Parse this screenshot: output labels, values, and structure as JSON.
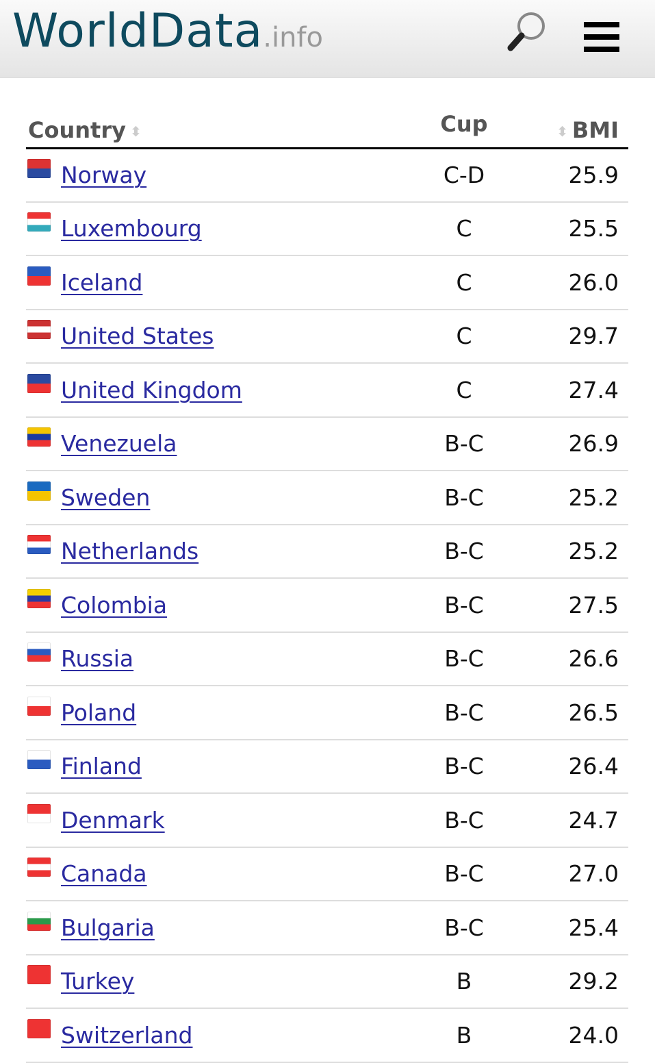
{
  "header": {
    "logo_main": "WorldData",
    "logo_tld": ".info",
    "search_icon": "magnifier-icon",
    "menu_icon": "hamburger-icon"
  },
  "table": {
    "columns": {
      "country": "Country",
      "cup": "Cup",
      "bmi": "BMI"
    },
    "rows": [
      {
        "country": "Norway",
        "cup": "C-D",
        "bmi": "25.9",
        "flag": [
          "#d33",
          "#2a4aa0"
        ]
      },
      {
        "country": "Luxembourg",
        "cup": "C",
        "bmi": "25.5",
        "flag": [
          "#e33",
          "#fff",
          "#3ab"
        ]
      },
      {
        "country": "Iceland",
        "cup": "C",
        "bmi": "26.0",
        "flag": [
          "#2a5bc0",
          "#e33"
        ]
      },
      {
        "country": "United States",
        "cup": "C",
        "bmi": "29.7",
        "flag": [
          "#c33",
          "#fff",
          "#c33"
        ]
      },
      {
        "country": "United Kingdom",
        "cup": "C",
        "bmi": "27.4",
        "flag": [
          "#2a4aa0",
          "#e33"
        ]
      },
      {
        "country": "Venezuela",
        "cup": "B-C",
        "bmi": "26.9",
        "flag": [
          "#f5c400",
          "#1a3aa0",
          "#e33"
        ]
      },
      {
        "country": "Sweden",
        "cup": "B-C",
        "bmi": "25.2",
        "flag": [
          "#1a6ac0",
          "#f5c400"
        ]
      },
      {
        "country": "Netherlands",
        "cup": "B-C",
        "bmi": "25.2",
        "flag": [
          "#e33",
          "#fff",
          "#2a5bc0"
        ]
      },
      {
        "country": "Colombia",
        "cup": "B-C",
        "bmi": "27.5",
        "flag": [
          "#f5d000",
          "#2a3aa0",
          "#e33"
        ]
      },
      {
        "country": "Russia",
        "cup": "B-C",
        "bmi": "26.6",
        "flag": [
          "#fff",
          "#2a5bc0",
          "#e33"
        ]
      },
      {
        "country": "Poland",
        "cup": "B-C",
        "bmi": "26.5",
        "flag": [
          "#fff",
          "#e33"
        ]
      },
      {
        "country": "Finland",
        "cup": "B-C",
        "bmi": "26.4",
        "flag": [
          "#fff",
          "#2a5bc0"
        ]
      },
      {
        "country": "Denmark",
        "cup": "B-C",
        "bmi": "24.7",
        "flag": [
          "#e33",
          "#fff"
        ]
      },
      {
        "country": "Canada",
        "cup": "B-C",
        "bmi": "27.0",
        "flag": [
          "#e33",
          "#fff",
          "#e33"
        ]
      },
      {
        "country": "Bulgaria",
        "cup": "B-C",
        "bmi": "25.4",
        "flag": [
          "#fff",
          "#2a9a4a",
          "#e33"
        ]
      },
      {
        "country": "Turkey",
        "cup": "B",
        "bmi": "29.2",
        "flag": [
          "#e33"
        ]
      },
      {
        "country": "Switzerland",
        "cup": "B",
        "bmi": "24.0",
        "flag": [
          "#e33"
        ]
      }
    ]
  }
}
